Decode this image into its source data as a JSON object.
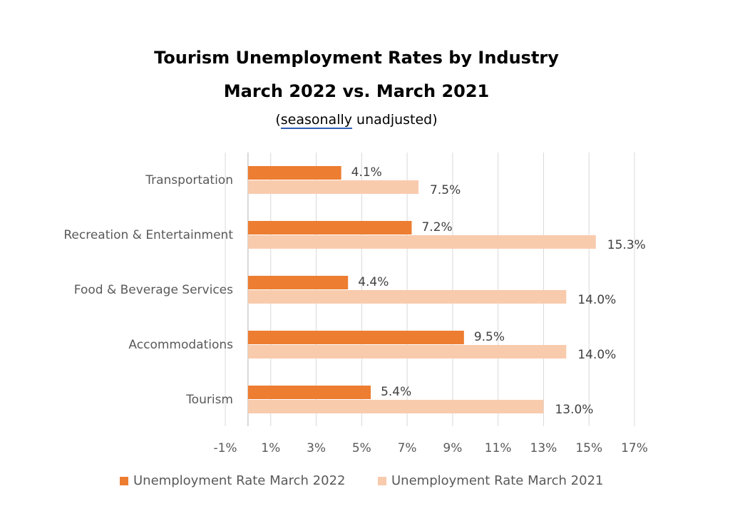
{
  "chart_data": {
    "type": "bar",
    "orientation": "horizontal",
    "title": "Tourism Unemployment Rates by Industry",
    "subtitle": "March 2022 vs. March 2021",
    "note": "(seasonally unadjusted)",
    "note_parts": [
      "(",
      "seasonally",
      " unadjusted)"
    ],
    "categories": [
      "Transportation",
      "Recreation & Entertainment",
      "Food & Beverage Services",
      "Accommodations",
      "Tourism"
    ],
    "series": [
      {
        "name": "Unemployment Rate March 2022",
        "color": "#ed7d31",
        "values": [
          4.1,
          7.2,
          4.4,
          9.5,
          5.4
        ],
        "labels": [
          "4.1%",
          "7.2%",
          "4.4%",
          "9.5%",
          "5.4%"
        ]
      },
      {
        "name": "Unemployment Rate March 2021",
        "color": "#f8cbad",
        "values": [
          7.5,
          15.3,
          14.0,
          14.0,
          13.0
        ],
        "labels": [
          "7.5%",
          "15.3%",
          "14.0%",
          "14.0%",
          "13.0%"
        ]
      }
    ],
    "xlim": [
      -1,
      17
    ],
    "xticks": [
      -1,
      1,
      3,
      5,
      7,
      9,
      11,
      13,
      15,
      17
    ],
    "xtick_labels": [
      "-1%",
      "1%",
      "3%",
      "5%",
      "7%",
      "9%",
      "11%",
      "13%",
      "15%",
      "17%"
    ],
    "grid": "vertical",
    "legend": "bottom"
  }
}
